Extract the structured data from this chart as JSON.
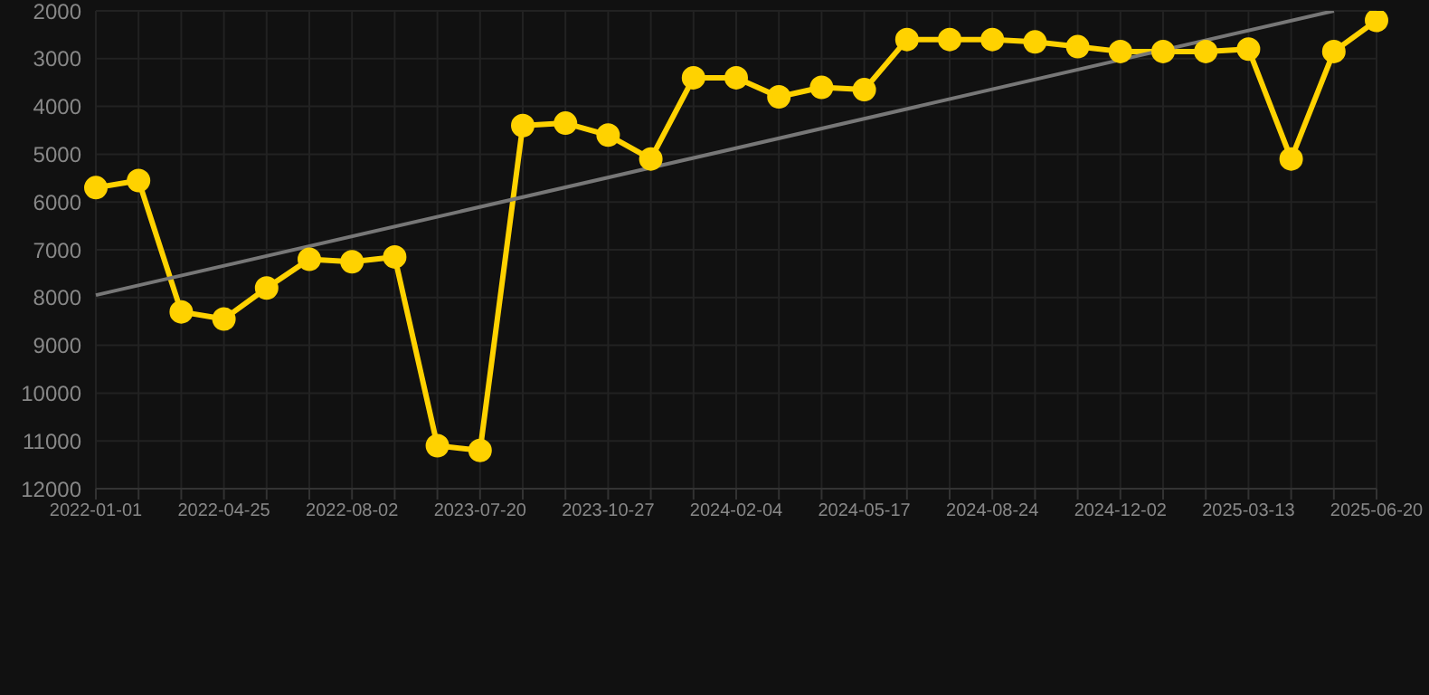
{
  "chart_data": {
    "type": "line",
    "categories": [
      "2022-01-01",
      null,
      null,
      "2022-04-25",
      null,
      null,
      "2022-08-02",
      null,
      null,
      "2023-07-20",
      null,
      null,
      "2023-10-27",
      null,
      null,
      "2024-02-04",
      null,
      null,
      "2024-05-17",
      null,
      null,
      "2024-08-24",
      null,
      null,
      "2024-12-02",
      null,
      null,
      "2025-03-13",
      null,
      null,
      "2025-06-20"
    ],
    "series": [
      {
        "color": "#ffd200",
        "marker": "circle",
        "values": [
          5700,
          5550,
          8300,
          8450,
          7800,
          7200,
          7250,
          7150,
          11100,
          11200,
          4400,
          4350,
          4600,
          5100,
          3400,
          3400,
          3800,
          3600,
          3650,
          2600,
          2600,
          2600,
          2650,
          2750,
          2850,
          2850,
          2850,
          2800,
          5100,
          2850,
          2200
        ]
      },
      {
        "color": "#777777",
        "marker": "none",
        "values": [
          7950,
          null,
          null,
          null,
          null,
          null,
          null,
          null,
          null,
          null,
          null,
          null,
          null,
          null,
          null,
          null,
          null,
          null,
          null,
          null,
          null,
          null,
          null,
          null,
          null,
          null,
          null,
          null,
          null,
          2000,
          null
        ]
      }
    ],
    "ylim": [
      12000,
      2000
    ],
    "yticks": [
      2000,
      3000,
      4000,
      5000,
      6000,
      7000,
      8000,
      9000,
      10000,
      11000,
      12000
    ],
    "grid": true,
    "legend": false
  }
}
